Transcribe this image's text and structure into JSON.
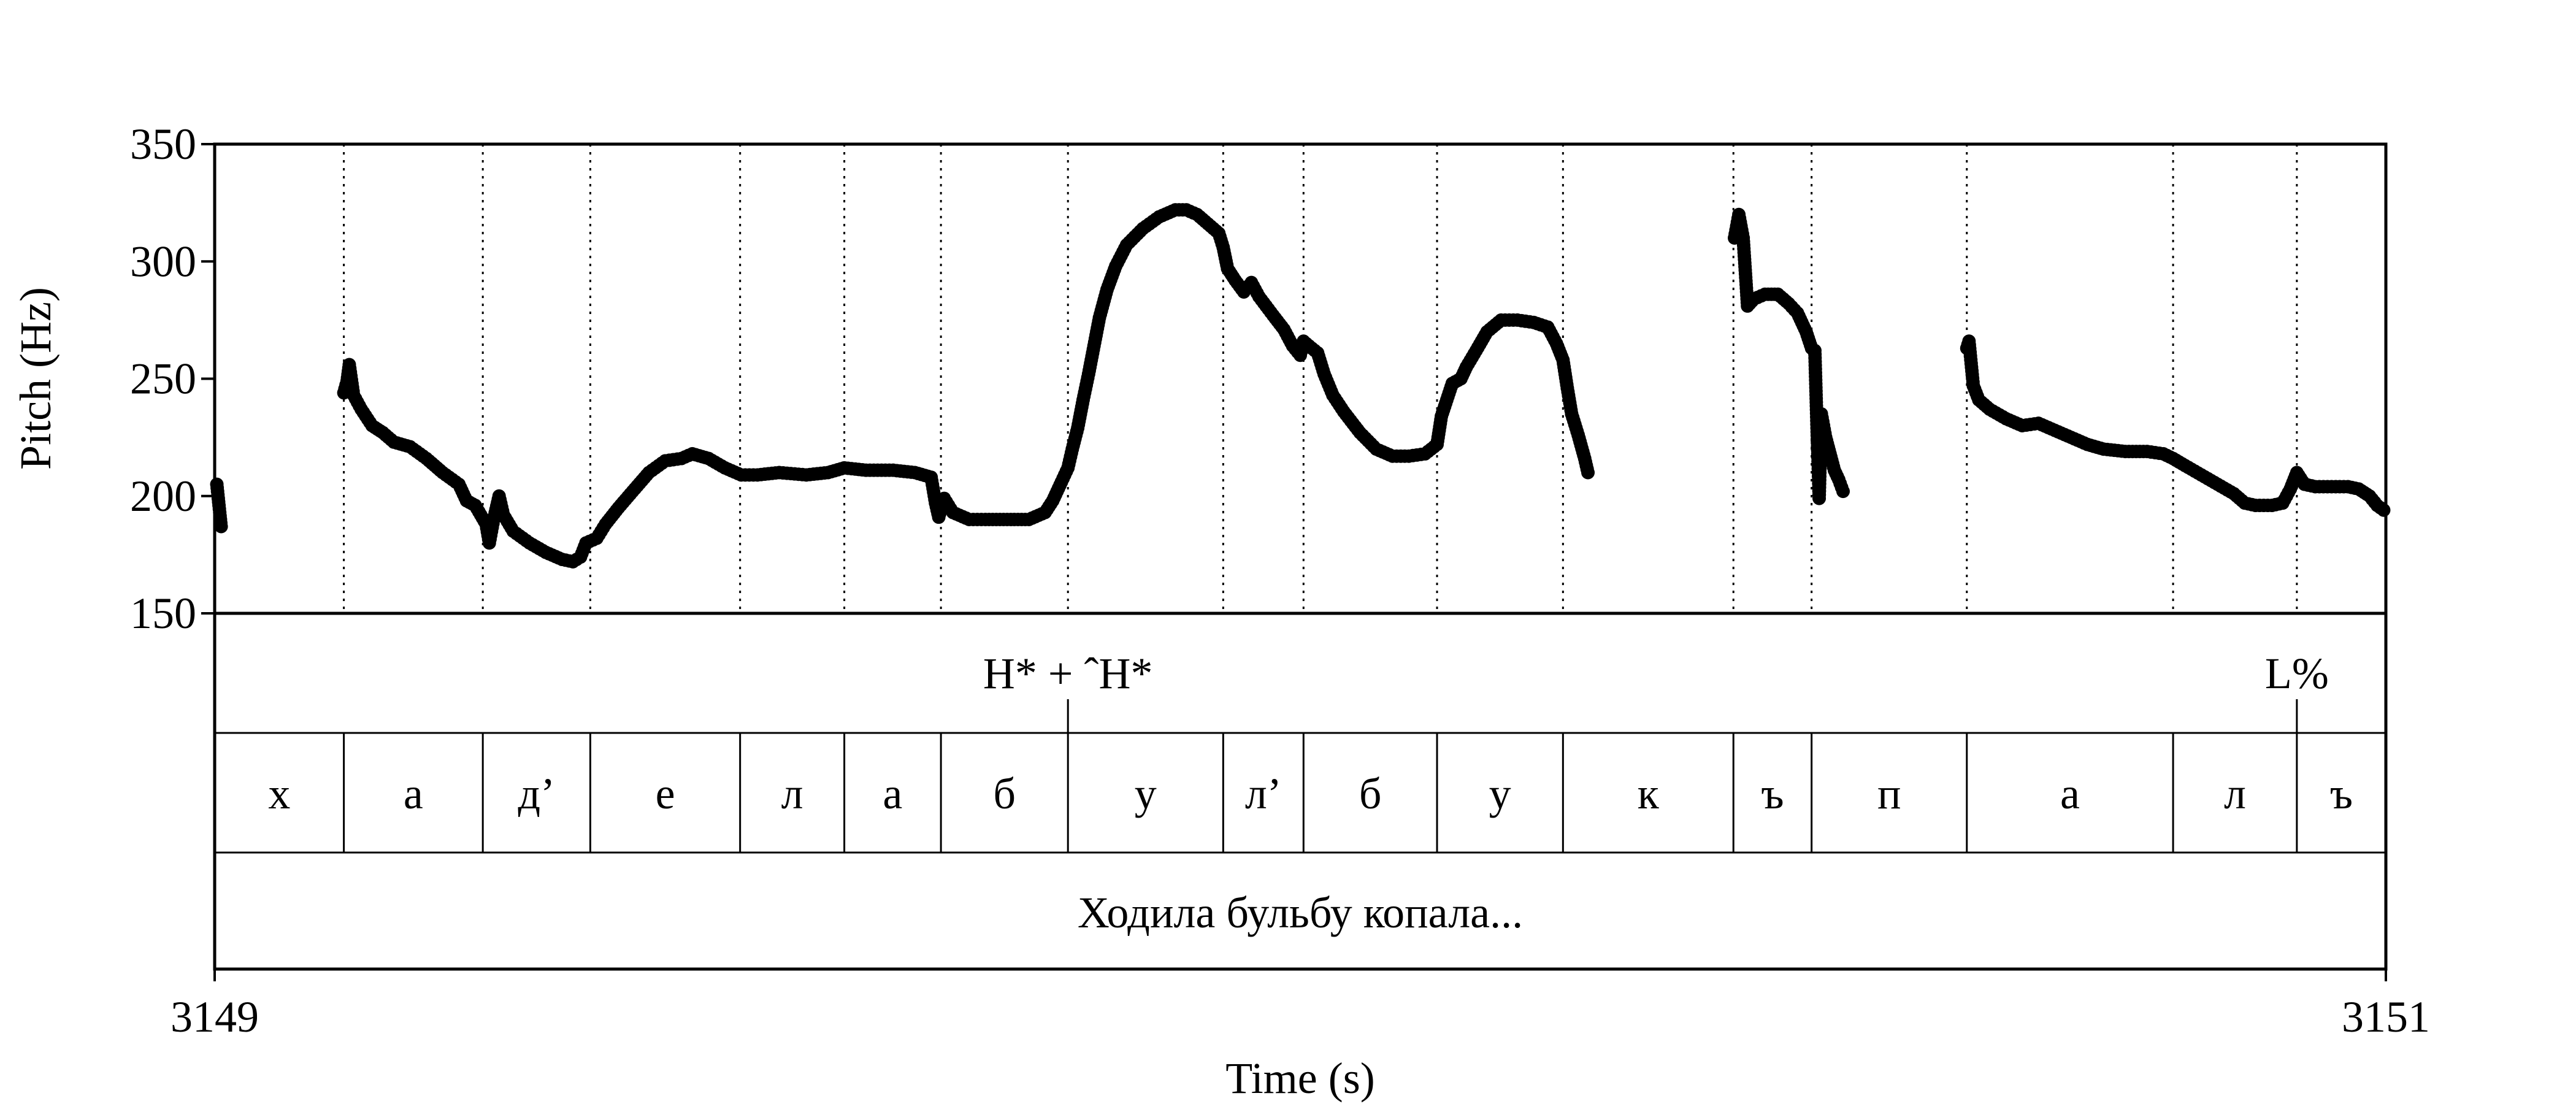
{
  "chart_data": {
    "type": "scatter",
    "title": "",
    "xlabel": "Time (s)",
    "ylabel": "Pitch (Hz)",
    "xlim": [
      3149,
      3151
    ],
    "ylim": [
      150,
      350
    ],
    "x_ticks": [
      "3149",
      "3151"
    ],
    "y_ticks": [
      "350",
      "300",
      "250",
      "200",
      "150"
    ],
    "grid": false,
    "marker_color": "#000000",
    "tiers": {
      "tones": {
        "boundaries": [
          3149.786,
          3150.918
        ],
        "labels": [
          {
            "text": "H* + ˆH*",
            "t": 3149.786
          },
          {
            "text": "L%",
            "t": 3150.918
          }
        ]
      },
      "segments": {
        "boundaries": [
          3149.119,
          3149.247,
          3149.346,
          3149.484,
          3149.58,
          3149.669,
          3149.786,
          3149.929,
          3150.003,
          3150.126,
          3150.242,
          3150.399,
          3150.471,
          3150.614,
          3150.804,
          3150.918
        ],
        "labels": [
          "х",
          "а",
          "д’",
          "е",
          "л",
          "а",
          "б",
          "у",
          "л’",
          "б",
          "у",
          "к",
          "ъ",
          "п",
          "а",
          "л",
          "ъ"
        ]
      },
      "phrase": {
        "labels": [
          "Ходила бульбу копала..."
        ]
      }
    },
    "series": [
      {
        "segments": [
          [
            [
              3149.002,
              205
            ],
            [
              3149.006,
              187
            ]
          ],
          [
            [
              3149.119,
              244
            ],
            [
              3149.122,
              249
            ],
            [
              3149.124,
              256
            ],
            [
              3149.128,
              243
            ],
            [
              3149.135,
              237
            ],
            [
              3149.145,
              230
            ],
            [
              3149.155,
              227
            ],
            [
              3149.165,
              223
            ],
            [
              3149.18,
              221
            ],
            [
              3149.195,
              216
            ],
            [
              3149.21,
              210
            ],
            [
              3149.225,
              205
            ],
            [
              3149.232,
              198
            ],
            [
              3149.24,
              196
            ],
            [
              3149.245,
              192
            ],
            [
              3149.25,
              188
            ],
            [
              3149.253,
              180
            ],
            [
              3149.257,
              190
            ],
            [
              3149.262,
              200
            ],
            [
              3149.266,
              192
            ],
            [
              3149.275,
              185
            ],
            [
              3149.29,
              180
            ],
            [
              3149.305,
              176
            ],
            [
              3149.32,
              173
            ],
            [
              3149.33,
              172
            ],
            [
              3149.337,
              174
            ],
            [
              3149.342,
              180
            ],
            [
              3149.352,
              182
            ],
            [
              3149.36,
              188
            ],
            [
              3149.372,
              195
            ],
            [
              3149.385,
              202
            ],
            [
              3149.4,
              210
            ],
            [
              3149.415,
              215
            ],
            [
              3149.43,
              216
            ],
            [
              3149.44,
              218
            ],
            [
              3149.455,
              216
            ],
            [
              3149.47,
              212
            ],
            [
              3149.485,
              209
            ],
            [
              3149.5,
              209
            ],
            [
              3149.52,
              210
            ],
            [
              3149.545,
              209
            ],
            [
              3149.565,
              210
            ],
            [
              3149.58,
              212
            ],
            [
              3149.6,
              211
            ],
            [
              3149.625,
              211
            ],
            [
              3149.645,
              210
            ],
            [
              3149.66,
              208
            ],
            [
              3149.664,
              197
            ],
            [
              3149.667,
              191
            ],
            [
              3149.672,
              199
            ],
            [
              3149.68,
              193
            ],
            [
              3149.695,
              190
            ],
            [
              3149.71,
              190
            ],
            [
              3149.73,
              190
            ],
            [
              3149.75,
              190
            ],
            [
              3149.765,
              193
            ],
            [
              3149.772,
              198
            ],
            [
              3149.78,
              206
            ],
            [
              3149.786,
              212
            ],
            [
              3149.79,
              220
            ],
            [
              3149.795,
              229
            ],
            [
              3149.8,
              241
            ],
            [
              3149.805,
              252
            ],
            [
              3149.81,
              264
            ],
            [
              3149.815,
              276
            ],
            [
              3149.822,
              288
            ],
            [
              3149.83,
              298
            ],
            [
              3149.84,
              307
            ],
            [
              3149.855,
              314
            ],
            [
              3149.87,
              319
            ],
            [
              3149.885,
              322
            ],
            [
              3149.895,
              322
            ],
            [
              3149.905,
              320
            ],
            [
              3149.915,
              316
            ],
            [
              3149.925,
              312
            ],
            [
              3149.929,
              306
            ],
            [
              3149.933,
              297
            ],
            [
              3149.94,
              292
            ],
            [
              3149.948,
              287
            ],
            [
              3149.955,
              291
            ],
            [
              3149.962,
              285
            ],
            [
              3149.975,
              277
            ],
            [
              3149.985,
              271
            ],
            [
              3149.993,
              264
            ],
            [
              3150.0,
              260
            ],
            [
              3150.003,
              266
            ],
            [
              3150.008,
              264
            ],
            [
              3150.016,
              261
            ],
            [
              3150.022,
              252
            ],
            [
              3150.03,
              243
            ],
            [
              3150.04,
              236
            ],
            [
              3150.055,
              227
            ],
            [
              3150.07,
              220
            ],
            [
              3150.085,
              217
            ],
            [
              3150.1,
              217
            ],
            [
              3150.115,
              218
            ],
            [
              3150.126,
              222
            ],
            [
              3150.13,
              234
            ],
            [
              3150.135,
              241
            ],
            [
              3150.14,
              248
            ],
            [
              3150.148,
              250
            ],
            [
              3150.153,
              255
            ],
            [
              3150.162,
              262
            ],
            [
              3150.172,
              270
            ],
            [
              3150.185,
              275
            ],
            [
              3150.2,
              275
            ],
            [
              3150.215,
              274
            ],
            [
              3150.228,
              272
            ],
            [
              3150.236,
              265
            ],
            [
              3150.242,
              258
            ],
            [
              3150.246,
              246
            ],
            [
              3150.25,
              235
            ],
            [
              3150.256,
              226
            ],
            [
              3150.262,
              216
            ],
            [
              3150.265,
              210
            ]
          ],
          [
            [
              3150.4,
              310
            ],
            [
              3150.404,
              320
            ],
            [
              3150.408,
              310
            ],
            [
              3150.412,
              281
            ],
            [
              3150.418,
              284
            ],
            [
              3150.428,
              286
            ],
            [
              3150.44,
              286
            ],
            [
              3150.45,
              282
            ],
            [
              3150.458,
              278
            ],
            [
              3150.466,
              270
            ],
            [
              3150.471,
              263
            ],
            [
              3150.474,
              262
            ],
            [
              3150.476,
              229
            ],
            [
              3150.478,
              199
            ],
            [
              3150.48,
              235
            ],
            [
              3150.484,
              225
            ],
            [
              3150.488,
              218
            ],
            [
              3150.492,
              211
            ],
            [
              3150.496,
              207
            ],
            [
              3150.5,
              202
            ]
          ],
          [
            [
              3150.614,
              263
            ],
            [
              3150.616,
              266
            ],
            [
              3150.62,
              247
            ],
            [
              3150.625,
              241
            ],
            [
              3150.635,
              237
            ],
            [
              3150.65,
              233
            ],
            [
              3150.665,
              230
            ],
            [
              3150.68,
              231
            ],
            [
              3150.695,
              228
            ],
            [
              3150.71,
              225
            ],
            [
              3150.725,
              222
            ],
            [
              3150.74,
              220
            ],
            [
              3150.76,
              219
            ],
            [
              3150.78,
              219
            ],
            [
              3150.795,
              218
            ],
            [
              3150.804,
              216
            ],
            [
              3150.815,
              213
            ],
            [
              3150.83,
              209
            ],
            [
              3150.845,
              205
            ],
            [
              3150.86,
              201
            ],
            [
              3150.87,
              197
            ],
            [
              3150.88,
              196
            ],
            [
              3150.895,
              196
            ],
            [
              3150.905,
              197
            ],
            [
              3150.912,
              203
            ],
            [
              3150.918,
              210
            ],
            [
              3150.925,
              205
            ],
            [
              3150.935,
              204
            ],
            [
              3150.95,
              204
            ],
            [
              3150.965,
              204
            ],
            [
              3150.975,
              203
            ],
            [
              3150.985,
              200
            ],
            [
              3150.992,
              196
            ],
            [
              3150.998,
              194
            ]
          ]
        ]
      }
    ]
  }
}
